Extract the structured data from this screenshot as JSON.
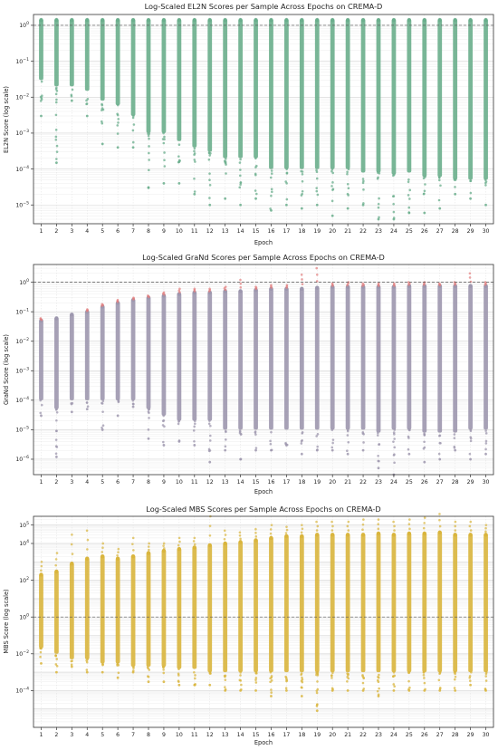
{
  "chart_data": [
    {
      "type": "scatter",
      "title": "Log-Scaled EL2N Scores per Sample Across Epochs on CREMA-D",
      "xlabel": "Epoch",
      "ylabel": "EL2N Score (log scale)",
      "yscale": "log",
      "ylim": [
        3e-06,
        2
      ],
      "yticks": [
        {
          "v": 1,
          "base": "10",
          "exp": "0"
        },
        {
          "v": 0.1,
          "base": "10",
          "exp": "−1"
        },
        {
          "v": 0.01,
          "base": "10",
          "exp": "−2"
        },
        {
          "v": 0.001,
          "base": "10",
          "exp": "−3"
        },
        {
          "v": 0.0001,
          "base": "10",
          "exp": "−4"
        },
        {
          "v": 1e-05,
          "base": "10",
          "exp": "−5"
        }
      ],
      "reference_line": 1,
      "grid": true,
      "color": "#6aae8c",
      "outlier_color": "#e27d7d",
      "x": [
        "1",
        "2",
        "3",
        "4",
        "5",
        "6",
        "7",
        "8",
        "9",
        "10",
        "11",
        "12",
        "13",
        "14",
        "15",
        "16",
        "17",
        "18",
        "19",
        "20",
        "21",
        "22",
        "23",
        "24",
        "25",
        "26",
        "27",
        "28",
        "29",
        "30"
      ],
      "series": [
        {
          "max": [
            1.4,
            1.4,
            1.4,
            1.4,
            1.4,
            1.4,
            1.4,
            1.4,
            1.4,
            1.4,
            1.4,
            1.4,
            1.4,
            1.4,
            1.4,
            1.4,
            1.4,
            1.4,
            1.4,
            1.4,
            1.4,
            1.4,
            1.4,
            1.4,
            1.4,
            1.4,
            1.4,
            1.4,
            1.4,
            1.4
          ],
          "dense_min": [
            0.03,
            0.02,
            0.02,
            0.015,
            0.008,
            0.006,
            0.003,
            0.001,
            0.001,
            0.0006,
            0.0004,
            0.0003,
            0.0002,
            0.0002,
            0.0002,
            0.0001,
            0.0001,
            0.0001,
            0.0001,
            0.0001,
            0.0001,
            8e-05,
            8e-05,
            7e-05,
            8e-05,
            6e-05,
            6e-05,
            5e-05,
            5e-05,
            5e-05
          ],
          "min": [
            0.003,
            0.00015,
            0.008,
            0.003,
            0.0005,
            0.0004,
            0.0004,
            3e-05,
            4e-05,
            4e-05,
            2e-05,
            1e-05,
            1.5e-05,
            1e-05,
            1.5e-05,
            7e-06,
            1e-05,
            8e-06,
            1e-05,
            5e-06,
            8e-06,
            1e-05,
            4e-06,
            4e-06,
            6e-06,
            6e-06,
            8e-06,
            2e-05,
            1.5e-05,
            1e-05
          ]
        }
      ]
    },
    {
      "type": "scatter",
      "title": "Log-Scaled GraNd Scores per Sample Across Epochs on CREMA-D",
      "xlabel": "Epoch",
      "ylabel": "GraNd Score (log scale)",
      "yscale": "log",
      "ylim": [
        3e-07,
        4
      ],
      "yticks": [
        {
          "v": 1,
          "base": "10",
          "exp": "0"
        },
        {
          "v": 0.1,
          "base": "10",
          "exp": "−1"
        },
        {
          "v": 0.01,
          "base": "10",
          "exp": "−2"
        },
        {
          "v": 0.001,
          "base": "10",
          "exp": "−3"
        },
        {
          "v": 0.0001,
          "base": "10",
          "exp": "−4"
        },
        {
          "v": 1e-05,
          "base": "10",
          "exp": "−5"
        },
        {
          "v": 1e-06,
          "base": "10",
          "exp": "−6"
        }
      ],
      "reference_line": 1,
      "grid": true,
      "color": "#9d97ae",
      "outlier_color": "#e27d7d",
      "x": [
        "1",
        "2",
        "3",
        "4",
        "5",
        "6",
        "7",
        "8",
        "9",
        "10",
        "11",
        "12",
        "13",
        "14",
        "15",
        "16",
        "17",
        "18",
        "19",
        "20",
        "21",
        "22",
        "23",
        "24",
        "25",
        "26",
        "27",
        "28",
        "29",
        "30"
      ],
      "series": [
        {
          "max": [
            0.05,
            0.06,
            0.08,
            0.1,
            0.15,
            0.2,
            0.25,
            0.3,
            0.35,
            0.4,
            0.45,
            0.45,
            0.5,
            0.5,
            0.55,
            0.6,
            0.6,
            0.6,
            0.65,
            0.7,
            0.7,
            0.7,
            0.7,
            0.7,
            0.75,
            0.75,
            0.75,
            0.75,
            0.75,
            0.75
          ],
          "dense_min": [
            0.0001,
            5e-05,
            0.0001,
            0.0001,
            0.0001,
            0.0001,
            0.0001,
            5e-05,
            3e-05,
            2e-05,
            2e-05,
            2e-05,
            1e-05,
            1e-05,
            1e-05,
            1e-05,
            1e-05,
            1e-05,
            1e-05,
            1e-05,
            1e-05,
            1e-05,
            8e-06,
            1e-05,
            1e-05,
            8e-06,
            8e-06,
            8e-06,
            1e-05,
            1e-05
          ],
          "min": [
            3e-05,
            1.2e-06,
            4e-05,
            5e-05,
            1e-05,
            3e-05,
            6e-05,
            5e-06,
            3e-06,
            4e-06,
            3e-06,
            8e-07,
            2e-06,
            1e-06,
            2e-06,
            2e-06,
            3e-06,
            1.5e-06,
            2e-06,
            2e-06,
            1.5e-06,
            2e-06,
            5e-07,
            3e-07,
            1.5e-06,
            8e-07,
            1e-06,
            2e-06,
            1e-06,
            1.5e-06
          ],
          "high_outliers": [
            0.06,
            0.05,
            0.08,
            0.12,
            0.18,
            0.25,
            0.3,
            0.35,
            0.45,
            0.6,
            0.6,
            0.6,
            0.7,
            1.2,
            0.7,
            0.8,
            0.8,
            1.8,
            3.0,
            0.9,
            1.0,
            0.9,
            0.9,
            0.9,
            1.0,
            1.0,
            0.9,
            1.0,
            2.0,
            1.0
          ]
        }
      ]
    },
    {
      "type": "scatter",
      "title": "Log-Scaled MBS Scores per Sample Across Epochs on CREMA-D",
      "xlabel": "Epoch",
      "ylabel": "MBS Score (log scale)",
      "yscale": "log",
      "ylim": [
        1e-06,
        300000
      ],
      "yticks": [
        {
          "v": 100000,
          "base": "10",
          "exp": "5"
        },
        {
          "v": 10000,
          "base": "10",
          "exp": "4"
        },
        {
          "v": 100,
          "base": "10",
          "exp": "2"
        },
        {
          "v": 1,
          "base": "10",
          "exp": "0"
        },
        {
          "v": 0.01,
          "base": "10",
          "exp": "−2"
        },
        {
          "v": 0.0001,
          "base": "10",
          "exp": "−4"
        }
      ],
      "reference_line": 1,
      "grid": true,
      "color": "#d9b53d",
      "outlier_color": "#d9b53d",
      "x": [
        "1",
        "2",
        "3",
        "4",
        "5",
        "6",
        "7",
        "8",
        "9",
        "10",
        "11",
        "12",
        "13",
        "14",
        "15",
        "16",
        "17",
        "18",
        "19",
        "20",
        "21",
        "22",
        "23",
        "24",
        "25",
        "26",
        "27",
        "28",
        "29",
        "30"
      ],
      "series": [
        {
          "max": [
            200,
            300,
            800,
            1500,
            2000,
            1500,
            2000,
            3000,
            4000,
            5000,
            6000,
            8000,
            10000,
            12000,
            15000,
            20000,
            25000,
            25000,
            30000,
            30000,
            30000,
            30000,
            35000,
            30000,
            35000,
            35000,
            40000,
            30000,
            30000,
            30000
          ],
          "dense_min": [
            0.02,
            0.01,
            0.005,
            0.005,
            0.003,
            0.003,
            0.002,
            0.002,
            0.002,
            0.0015,
            0.0015,
            0.001,
            0.001,
            0.001,
            0.001,
            0.001,
            0.001,
            0.001,
            0.001,
            0.001,
            0.001,
            0.001,
            0.001,
            0.001,
            0.001,
            0.001,
            0.001,
            0.001,
            0.001,
            0.001
          ],
          "min": [
            0.003,
            0.001,
            0.002,
            0.001,
            0.001,
            0.0005,
            0.001,
            0.0003,
            0.0003,
            0.0002,
            0.0002,
            0.0002,
            0.0001,
            0.0001,
            0.0001,
            5e-05,
            0.0001,
            5e-05,
            8e-06,
            0.0001,
            0.0001,
            0.0001,
            5e-05,
            0.0001,
            0.0001,
            0.0001,
            0.0001,
            0.0001,
            0.0002,
            0.0001
          ],
          "high_outliers": [
            1000,
            3000,
            30000,
            50000,
            10000,
            5000,
            20000,
            10000,
            10000,
            20000,
            20000,
            300000,
            50000,
            40000,
            60000,
            100000,
            80000,
            100000,
            150000,
            150000,
            150000,
            200000,
            200000,
            150000,
            200000,
            250000,
            400000,
            150000,
            150000,
            100000
          ]
        }
      ]
    }
  ]
}
